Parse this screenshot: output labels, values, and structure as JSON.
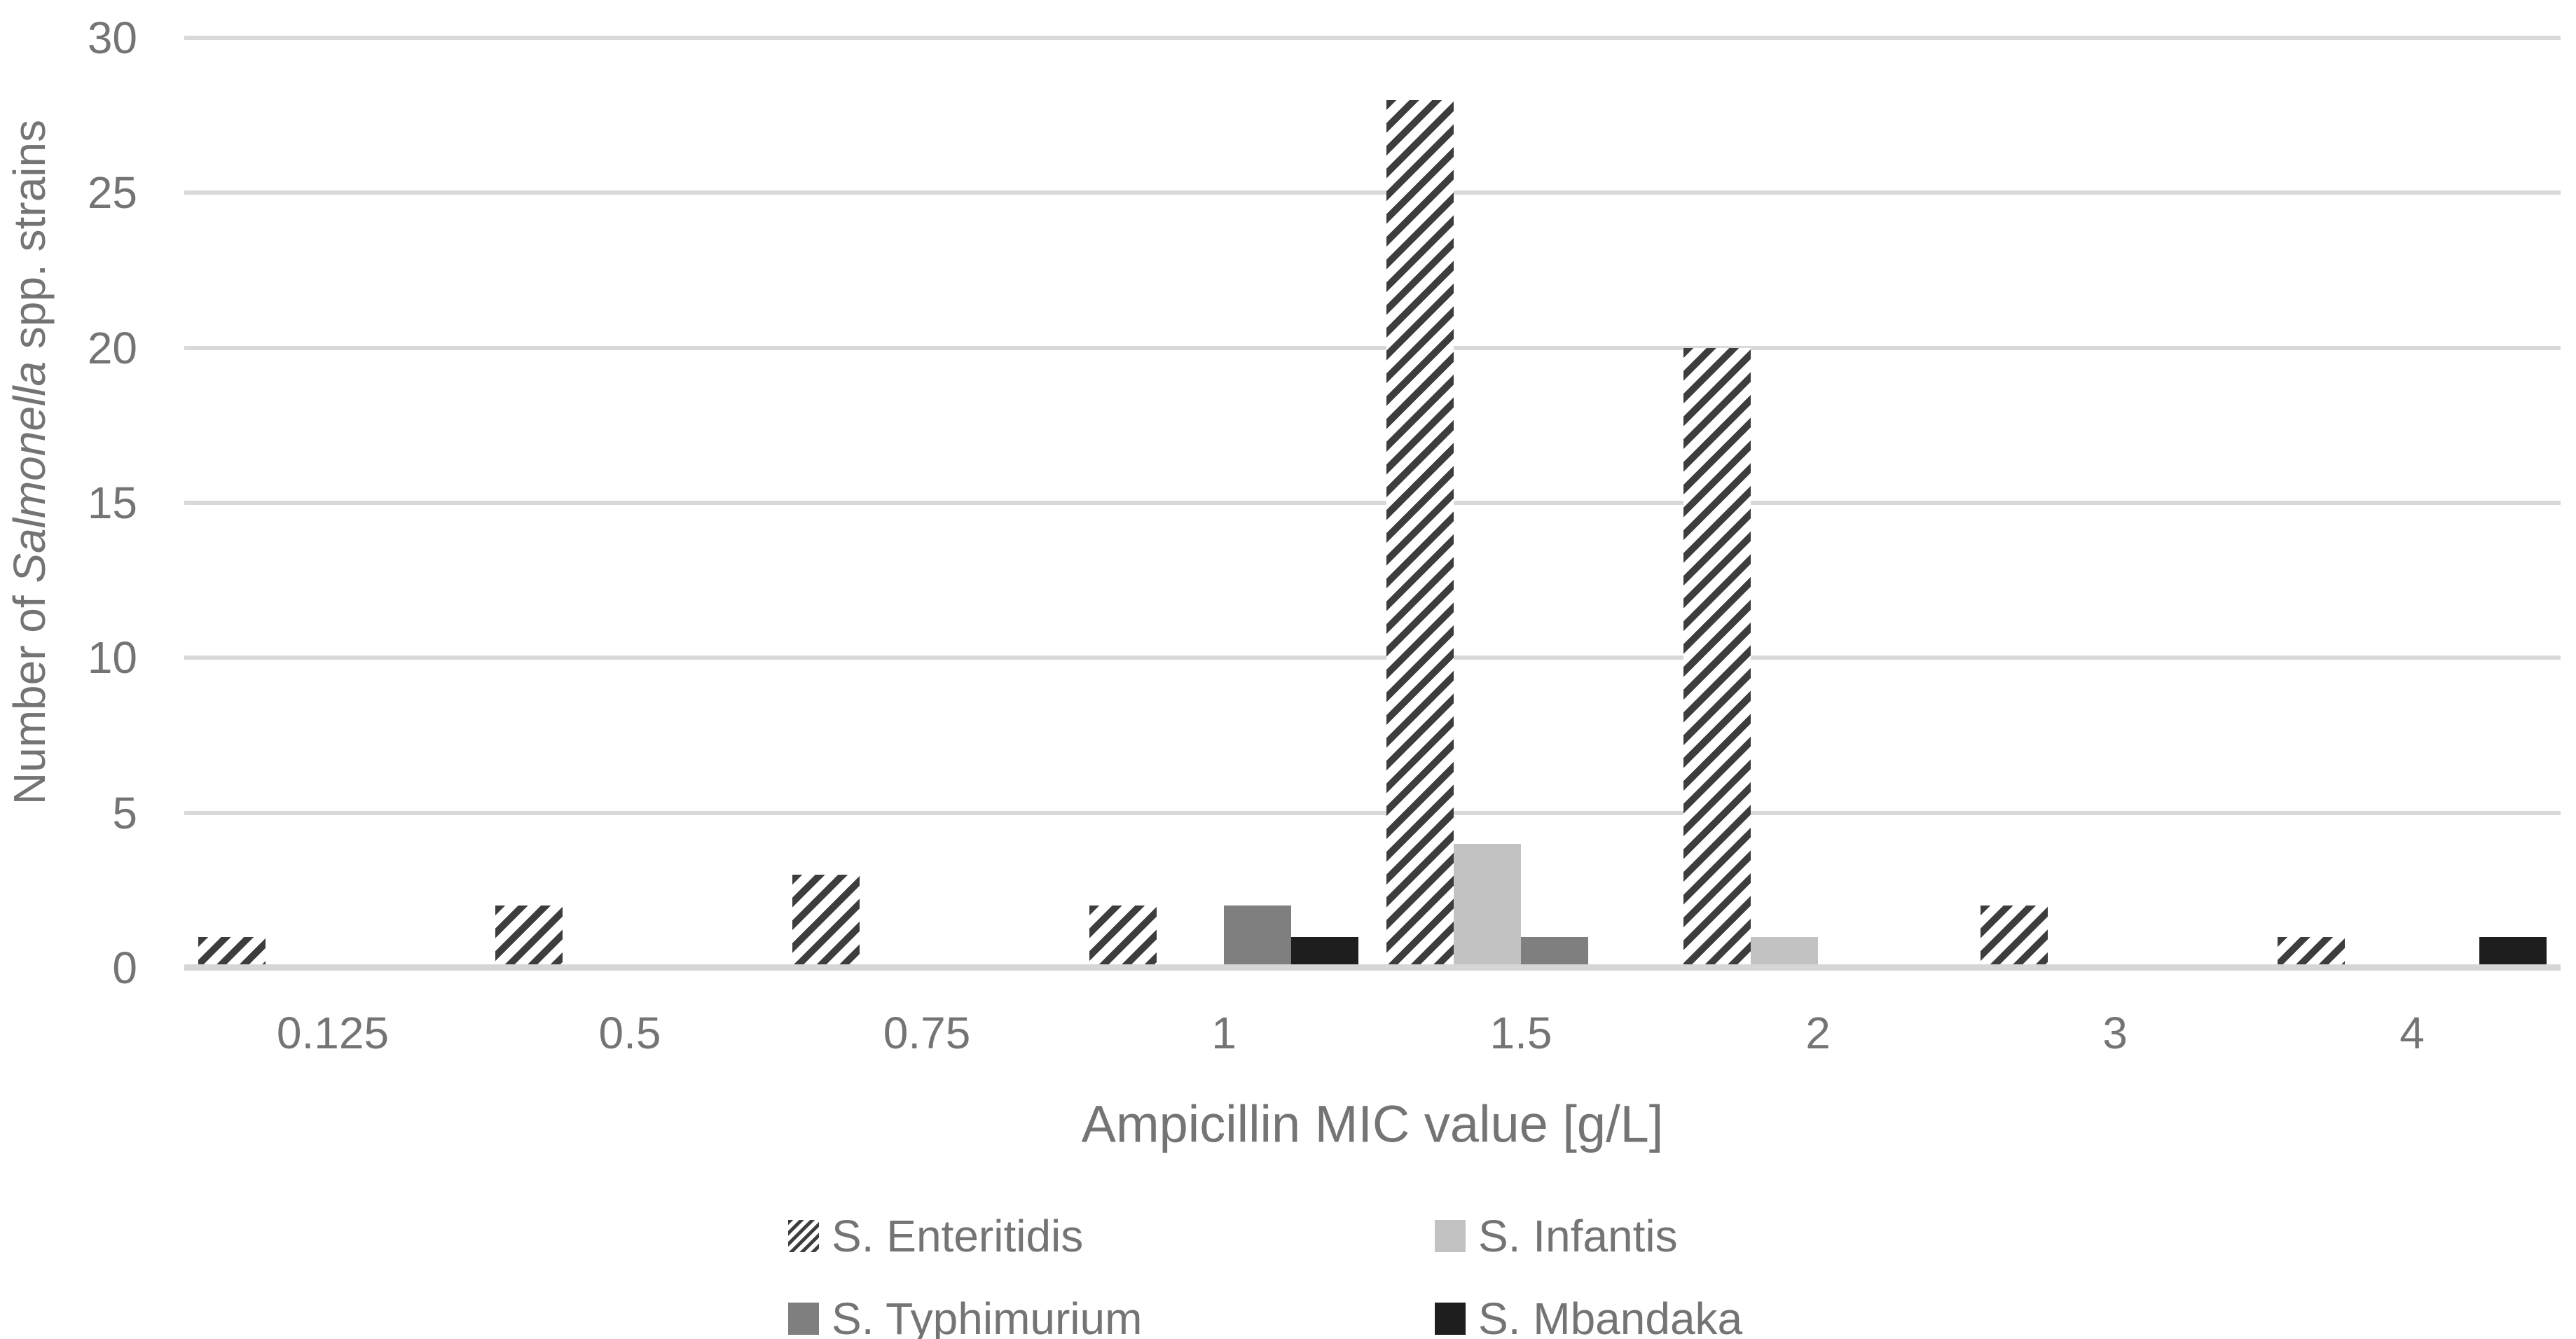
{
  "chart_data": {
    "type": "bar",
    "title": "",
    "categories": [
      "0.125",
      "0.5",
      "0.75",
      "1",
      "1.5",
      "2",
      "3",
      "4"
    ],
    "series": [
      {
        "name": "S. Enteritidis",
        "style": "diagonal-hatch",
        "color": "#3d3d3d",
        "values": [
          1,
          2,
          3,
          2,
          28,
          20,
          2,
          1
        ]
      },
      {
        "name": "S. Infantis",
        "style": "solid",
        "color": "#c2c2c2",
        "values": [
          0,
          0,
          0,
          0,
          4,
          1,
          0,
          0
        ]
      },
      {
        "name": "S. Typhimurium",
        "style": "solid",
        "color": "#7f7f7f",
        "values": [
          0,
          0,
          0,
          2,
          1,
          0,
          0,
          0
        ]
      },
      {
        "name": "S. Mbandaka",
        "style": "solid",
        "color": "#1e1e1e",
        "values": [
          0,
          0,
          0,
          1,
          0,
          0,
          0,
          1
        ]
      }
    ],
    "xlabel": "Ampicillin MIC value [g/L]",
    "ylabel": {
      "prefix": "Number of ",
      "italic": "Salmonella",
      "suffix": " spp. strains"
    },
    "ylim": [
      0,
      30
    ],
    "yticks": [
      0,
      5,
      10,
      15,
      20,
      25,
      30
    ],
    "grid": "horizontal",
    "legend_position": "bottom",
    "colors": {
      "gridline": "#d9d9d9",
      "axis_line": "#d6d6d6",
      "text": "#747474",
      "background": "#ffffff"
    }
  }
}
